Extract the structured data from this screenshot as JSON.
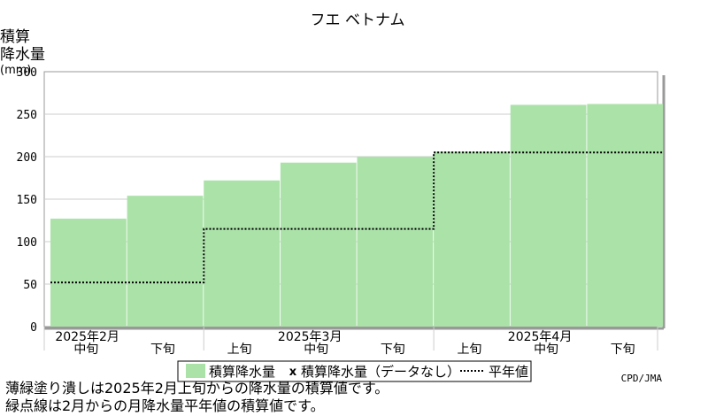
{
  "chart_data": {
    "type": "bar",
    "title": "フエ ベトナム",
    "ylabel_lines": [
      "積算",
      "降水量",
      "(mm)"
    ],
    "ylim": [
      0,
      300
    ],
    "yticks": [
      0,
      50,
      100,
      150,
      200,
      250,
      300
    ],
    "grid": true,
    "categories": [
      "中旬",
      "下旬",
      "上旬",
      "中旬",
      "下旬",
      "上旬",
      "中旬",
      "下旬"
    ],
    "months": [
      {
        "label": "2025年2月",
        "span": [
          0,
          1
        ]
      },
      {
        "label": "2025年3月",
        "span": [
          2,
          4
        ]
      },
      {
        "label": "2025年4月",
        "span": [
          5,
          7
        ]
      }
    ],
    "series": [
      {
        "name": "積算降水量",
        "type": "bar",
        "color": "#aae2a8",
        "values": [
          127,
          154,
          172,
          193,
          200,
          206,
          261,
          262
        ]
      },
      {
        "name": "平年値",
        "type": "step",
        "style": "dotted",
        "color": "#000000",
        "values": [
          52,
          52,
          115,
          115,
          115,
          205,
          205,
          205
        ]
      }
    ],
    "legend": {
      "placement": "bottom",
      "entries": [
        {
          "label": "積算降水量",
          "marker": "swatch",
          "color": "#aae2a8"
        },
        {
          "label": "積算降水量（データなし）",
          "marker": "x"
        },
        {
          "label": "平年値",
          "marker": "dotted-line"
        }
      ]
    },
    "credit": "CPD/JMA"
  },
  "footnotes": [
    "薄緑塗り潰しは2025年2月上旬からの降水量の積算値です。",
    "緑点線は2月からの月降水量平年値の積算値です。"
  ],
  "colors": {
    "fill": "#aae2a8",
    "grid": "#cccccc",
    "axis": "#999999"
  }
}
